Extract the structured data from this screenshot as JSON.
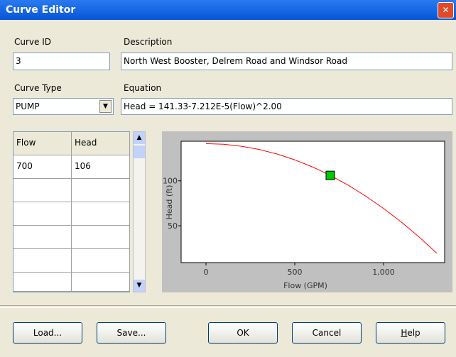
{
  "window": {
    "title": "Curve Editor"
  },
  "fields": {
    "curve_id": {
      "label": "Curve ID",
      "value": "3"
    },
    "description": {
      "label": "Description",
      "value": "North West Booster, Delrem Road and Windsor Road"
    },
    "curve_type": {
      "label": "Curve Type",
      "value": "PUMP"
    },
    "equation": {
      "label": "Equation",
      "value": "Head = 141.33-7.212E-5(Flow)^2.00"
    }
  },
  "table": {
    "columns": [
      "Flow",
      "Head"
    ],
    "rows": [
      [
        700,
        106
      ]
    ]
  },
  "chart": {
    "type": "line",
    "xlabel": "Flow (GPM)",
    "ylabel": "Head (ft)",
    "color": "#ff0000",
    "marker_color": "#00c800",
    "x": [
      0,
      100,
      200,
      300,
      400,
      500,
      600,
      700,
      800,
      900,
      1000,
      1100,
      1200,
      1300
    ],
    "values": [
      141.3,
      140.6,
      138.4,
      134.8,
      129.8,
      123.3,
      115.4,
      106.0,
      95.2,
      82.9,
      69.2,
      54.1,
      37.5,
      19.4
    ],
    "xlim": [
      -140,
      1344
    ],
    "ylim": [
      9,
      144
    ],
    "xticks": [
      0,
      500,
      {
        "value": 1000,
        "label": "1,000"
      }
    ],
    "yticks": [
      50,
      100
    ]
  },
  "buttons": [
    "Load...",
    "Save...",
    "OK",
    "Cancel",
    "Help"
  ]
}
